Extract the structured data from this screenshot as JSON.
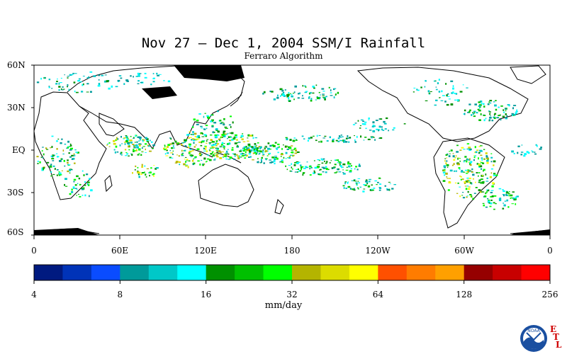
{
  "title": "Nov 27 – Dec 1, 2004 SSM/I Rainfall",
  "subtitle": "Ferraro Algorithm",
  "map": {
    "lat_labels": [
      "60N",
      "30N",
      "EQ",
      "30S",
      "60S"
    ],
    "lon_labels": [
      "0",
      "60E",
      "120E",
      "180",
      "120W",
      "60W",
      "0"
    ]
  },
  "colorbar": {
    "colors": [
      "#001a80",
      "#0033b8",
      "#0a4cff",
      "#009a9a",
      "#00c8c8",
      "#00ffff",
      "#009000",
      "#00c000",
      "#00ff00",
      "#b4b400",
      "#dcdc00",
      "#ffff00",
      "#ff5000",
      "#ff7c00",
      "#ffa000",
      "#960000",
      "#c80000",
      "#ff0000"
    ],
    "tick_labels": [
      "4",
      "8",
      "16",
      "32",
      "64",
      "128",
      "256"
    ],
    "units": "mm/day"
  },
  "logo": {
    "name": "NOAA",
    "lab": [
      "E",
      "T",
      "L"
    ]
  }
}
